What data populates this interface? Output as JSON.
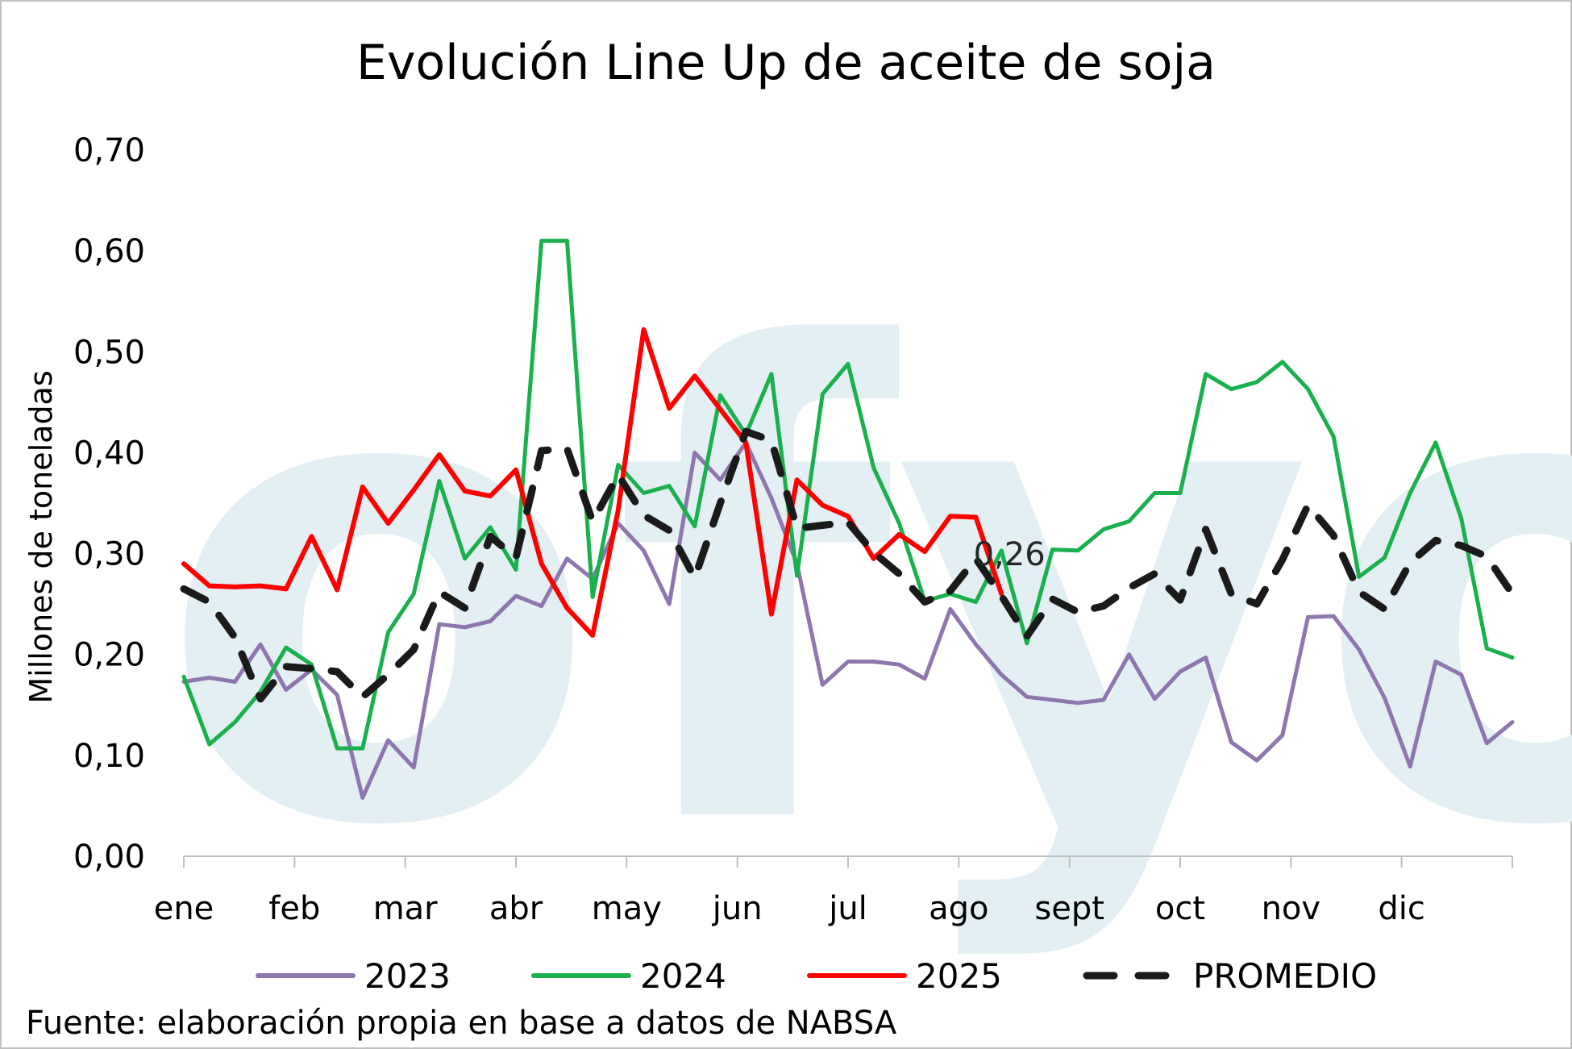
{
  "chart_data": {
    "type": "line",
    "title": "Evolución Line Up de aceite de soja",
    "ylabel": "Millones de toneladas",
    "xlabel": "",
    "ylim": [
      0,
      0.7
    ],
    "yticks": [
      "0,00",
      "0,10",
      "0,20",
      "0,30",
      "0,40",
      "0,50",
      "0,60",
      "0,70"
    ],
    "month_labels": [
      "ene",
      "feb",
      "mar",
      "abr",
      "may",
      "jun",
      "jul",
      "ago",
      "sept",
      "oct",
      "nov",
      "dic"
    ],
    "weeks": 53,
    "legend_position": "bottom",
    "grid": false,
    "watermark": "fyo",
    "source": "Fuente: elaboración propia en base a datos de NABSA",
    "series": [
      {
        "name": "2023",
        "color": "#8e76ae",
        "dash": "solid",
        "values": [
          0.173,
          0.177,
          0.173,
          0.21,
          0.165,
          0.185,
          0.16,
          0.058,
          0.115,
          0.088,
          0.23,
          0.227,
          0.233,
          0.258,
          0.248,
          0.295,
          0.275,
          0.33,
          0.303,
          0.25,
          0.4,
          0.373,
          0.41,
          0.355,
          0.29,
          0.17,
          0.193,
          0.193,
          0.19,
          0.176,
          0.245,
          0.21,
          0.18,
          0.158,
          0.155,
          0.152,
          0.155,
          0.2,
          0.156,
          0.183,
          0.197,
          0.113,
          0.095,
          0.12,
          0.237,
          0.238,
          0.205,
          0.157,
          0.089,
          0.193,
          0.18,
          0.112,
          0.133
        ]
      },
      {
        "name": "2024",
        "color": "#1ab04d",
        "dash": "solid",
        "values": [
          0.178,
          0.111,
          0.133,
          0.163,
          0.207,
          0.19,
          0.107,
          0.107,
          0.222,
          0.26,
          0.372,
          0.295,
          0.326,
          0.284,
          0.61,
          0.61,
          0.257,
          0.388,
          0.36,
          0.367,
          0.327,
          0.457,
          0.418,
          0.478,
          0.278,
          0.458,
          0.488,
          0.385,
          0.33,
          0.253,
          0.26,
          0.252,
          0.303,
          0.211,
          0.304,
          0.303,
          0.324,
          0.332,
          0.36,
          0.36,
          0.478,
          0.463,
          0.47,
          0.49,
          0.463,
          0.416,
          0.277,
          0.296,
          0.36,
          0.41,
          0.335,
          0.206,
          0.197
        ]
      },
      {
        "name": "2025",
        "color": "#ff0000",
        "dash": "solid",
        "values": [
          0.29,
          0.268,
          0.267,
          0.268,
          0.265,
          0.317,
          0.264,
          0.366,
          0.33,
          0.363,
          0.398,
          0.362,
          0.357,
          0.383,
          0.29,
          0.246,
          0.219,
          0.343,
          0.522,
          0.444,
          0.476,
          0.443,
          0.41,
          0.24,
          0.373,
          0.348,
          0.337,
          0.295,
          0.319,
          0.302,
          0.337,
          0.336,
          0.26
        ]
      },
      {
        "name": "PROMEDIO",
        "color": "#1a1a1a",
        "dash": "dashed",
        "values": [
          0.265,
          0.252,
          0.217,
          0.156,
          0.188,
          0.186,
          0.183,
          0.158,
          0.18,
          0.205,
          0.262,
          0.246,
          0.317,
          0.296,
          0.402,
          0.404,
          0.332,
          0.378,
          0.338,
          0.323,
          0.276,
          0.35,
          0.421,
          0.412,
          0.325,
          0.328,
          0.331,
          0.301,
          0.28,
          0.252,
          0.263,
          0.295,
          0.258,
          0.218,
          0.255,
          0.242,
          0.248,
          0.266,
          0.28,
          0.254,
          0.324,
          0.26,
          0.25,
          0.294,
          0.348,
          0.318,
          0.262,
          0.245,
          0.291,
          0.313,
          0.308,
          0.297,
          0.26
        ]
      }
    ],
    "annotations": [
      {
        "text": "0,26",
        "series": "PROMEDIO",
        "week_index": 32
      }
    ]
  }
}
